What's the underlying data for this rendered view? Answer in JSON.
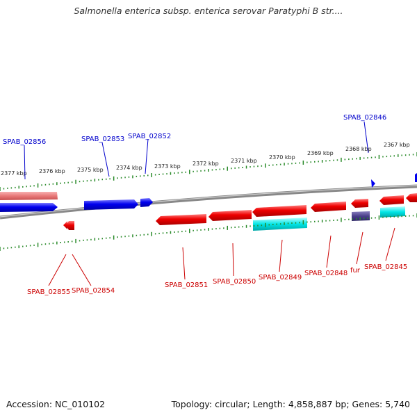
{
  "title": "Salmonella enterica subsp. enterica serovar Paratyphi B str....",
  "footer": {
    "accession": "Accession: NC_010102",
    "summary": "Topology: circular; Length: 4,858,887 bp; Genes: 5,740"
  },
  "ruler_labels": [
    "2377 kbp",
    "2376 kbp",
    "2375 kbp",
    "2374 kbp",
    "2373 kbp",
    "2372 kbp",
    "2371 kbp",
    "2370 kbp",
    "2369 kbp",
    "2368 kbp",
    "2367 kbp"
  ],
  "gene_labels_top": [
    "SPAB_02856",
    "SPAB_02853",
    "SPAB_02852",
    "SPAB_02846"
  ],
  "gene_labels_bottom": [
    "SPAB_02855",
    "SPAB_02854",
    "SPAB_02851",
    "SPAB_02850",
    "SPAB_02849",
    "SPAB_02848",
    "fur",
    "SPAB_02845"
  ],
  "colors": {
    "forward_gene": "#0000ee",
    "reverse_gene": "#ee0000",
    "cyan_feature": "#00e5e5",
    "purple_feature": "#4a3f8a",
    "backbone": "#888888",
    "ruler_ticks": "#2a8a2a",
    "top_label": "#0000cc",
    "bottom_label": "#cc0000"
  }
}
